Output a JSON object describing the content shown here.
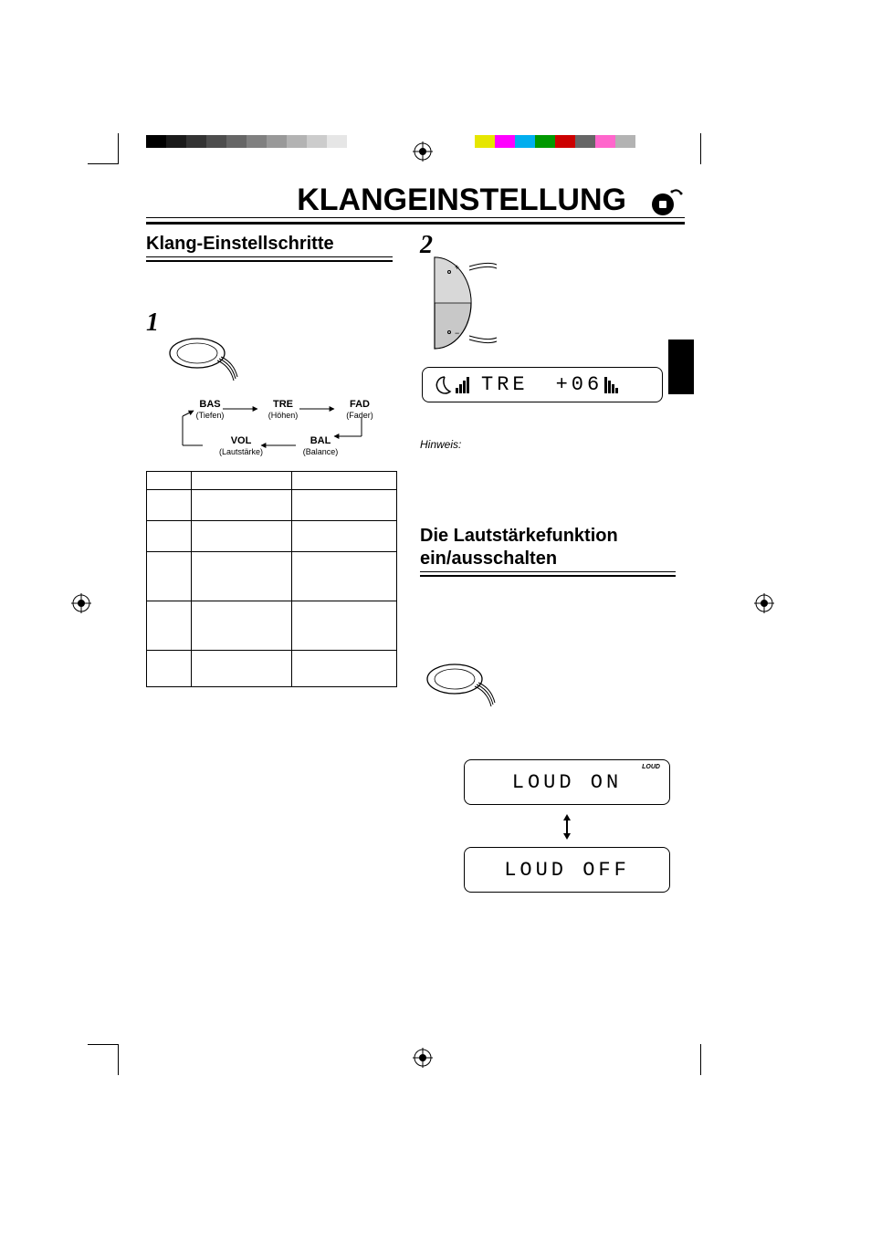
{
  "print_swatches_gray": [
    "#000000",
    "#1a1a1a",
    "#333333",
    "#4d4d4d",
    "#666666",
    "#808080",
    "#999999",
    "#b3b3b3",
    "#cccccc",
    "#e6e6e6",
    "#ffffff"
  ],
  "print_swatches_color": [
    "#e6e600",
    "#ff00ff",
    "#00aeef",
    "#009900",
    "#cc0000",
    "#666666",
    "#ff66cc",
    "#b3b3b3"
  ],
  "title": "KLANGEINSTELLUNG",
  "section1_heading": "Klang-Einstellschritte",
  "step1_num": "1",
  "step2_num": "2",
  "flow": {
    "bas": {
      "label": "BAS",
      "sub": "(Tiefen)"
    },
    "tre": {
      "label": "TRE",
      "sub": "(Höhen)"
    },
    "fad": {
      "label": "FAD",
      "sub": "(Fader)"
    },
    "vol": {
      "label": "VOL",
      "sub": "(Lautstärke)"
    },
    "bal": {
      "label": "BAL",
      "sub": "(Balance)"
    }
  },
  "hint_label": "Hinweis:",
  "section2_heading_l1": "Die Lautstärkefunktion",
  "section2_heading_l2": "ein/ausschalten",
  "lcd_tre_text": "TRE",
  "lcd_tre_val": "+06",
  "lcd_loud_on": "LOUD ON",
  "lcd_loud_off": "LOUD OFF",
  "lcd_loud_tag": "LOUD",
  "colors": {
    "text": "#000000",
    "bg": "#ffffff",
    "rule": "#000000"
  }
}
